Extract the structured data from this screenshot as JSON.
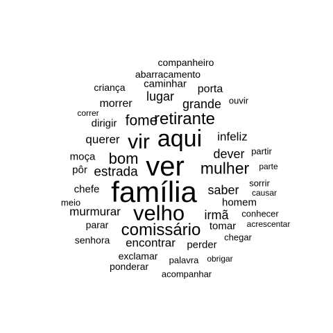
{
  "text_color": "#000000",
  "background": "#ffffff",
  "words": [
    {
      "text": "família",
      "weight": 100
    },
    {
      "text": "ver",
      "weight": 92
    },
    {
      "text": "aqui",
      "weight": 82
    },
    {
      "text": "velho",
      "weight": 74
    },
    {
      "text": "vir",
      "weight": 66
    },
    {
      "text": "retirante",
      "weight": 60
    },
    {
      "text": "comissário",
      "weight": 56
    },
    {
      "text": "mulher",
      "weight": 54
    },
    {
      "text": "bom",
      "weight": 52
    },
    {
      "text": "fome",
      "weight": 48
    },
    {
      "text": "estrada",
      "weight": 44
    },
    {
      "text": "saber",
      "weight": 42
    },
    {
      "text": "irmã",
      "weight": 42
    },
    {
      "text": "grande",
      "weight": 40
    },
    {
      "text": "dever",
      "weight": 40
    },
    {
      "text": "lugar",
      "weight": 38
    },
    {
      "text": "querer",
      "weight": 38
    },
    {
      "text": "infeliz",
      "weight": 38
    },
    {
      "text": "murmurar",
      "weight": 36
    },
    {
      "text": "encontrar",
      "weight": 36
    },
    {
      "text": "morrer",
      "weight": 36
    },
    {
      "text": "porta",
      "weight": 34
    },
    {
      "text": "dirigir",
      "weight": 34
    },
    {
      "text": "moça",
      "weight": 34
    },
    {
      "text": "perder",
      "weight": 32
    },
    {
      "text": "tomar",
      "weight": 32
    },
    {
      "text": "homem",
      "weight": 32
    },
    {
      "text": "chefe",
      "weight": 32
    },
    {
      "text": "pôr",
      "weight": 32
    },
    {
      "text": "caminhar",
      "weight": 32
    },
    {
      "text": "exclamar",
      "weight": 32
    },
    {
      "text": "parar",
      "weight": 30
    },
    {
      "text": "sorrir",
      "weight": 30
    },
    {
      "text": "conhecer",
      "weight": 30
    },
    {
      "text": "palavra",
      "weight": 30
    },
    {
      "text": "criança",
      "weight": 30
    },
    {
      "text": "abarracamento",
      "weight": 30
    },
    {
      "text": "companheiro",
      "weight": 30
    },
    {
      "text": "senhora",
      "weight": 30
    },
    {
      "text": "ponderar",
      "weight": 30
    },
    {
      "text": "acompanhar",
      "weight": 28
    },
    {
      "text": "chegar",
      "weight": 28
    },
    {
      "text": "meio",
      "weight": 28
    },
    {
      "text": "partir",
      "weight": 28
    },
    {
      "text": "ouvir",
      "weight": 26
    },
    {
      "text": "obrigar",
      "weight": 26
    },
    {
      "text": "acrescentar",
      "weight": 26
    },
    {
      "text": "causar",
      "weight": 26
    },
    {
      "text": "parte",
      "weight": 26
    },
    {
      "text": "correr",
      "weight": 26
    }
  ]
}
